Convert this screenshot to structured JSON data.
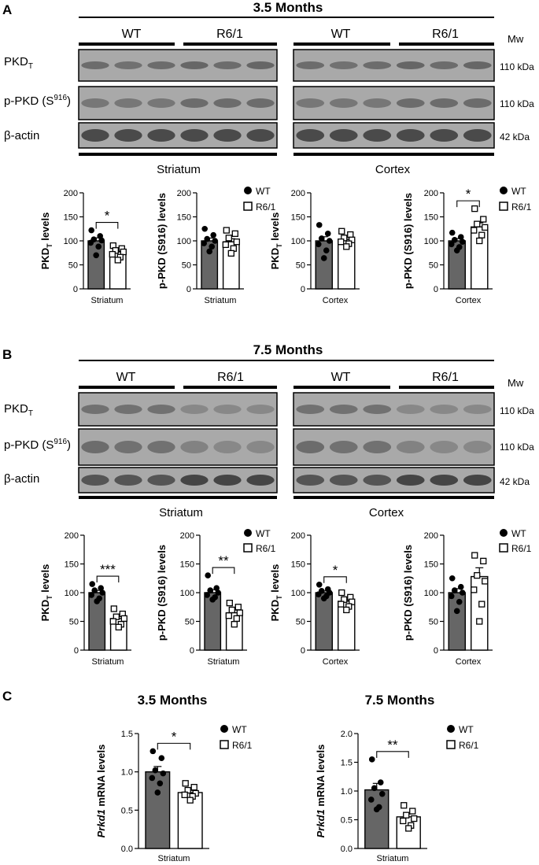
{
  "panels": {
    "A": {
      "letter": "A",
      "title": "3.5 Months",
      "groups": [
        "WT",
        "R6/1",
        "WT",
        "R6/1"
      ],
      "mw_header": "Mw",
      "blot_labels": [
        "PKD",
        "p-PKD (S",
        "β-actin"
      ],
      "pkd_sub": "T",
      "ppkd_sup": "916",
      "ppkd_close": ")",
      "mw_labels": [
        "110 kDa",
        "110 kDa",
        "42 kDa"
      ],
      "region_labels": [
        "Striatum",
        "Cortex"
      ]
    },
    "B": {
      "letter": "B",
      "title": "7.5 Months",
      "groups": [
        "WT",
        "R6/1",
        "WT",
        "R6/1"
      ],
      "mw_header": "Mw",
      "blot_labels": [
        "PKD",
        "p-PKD (S",
        "β-actin"
      ],
      "pkd_sub": "T",
      "ppkd_sup": "916",
      "ppkd_close": ")",
      "mw_labels": [
        "110 kDa",
        "110 kDa",
        "42 kDa"
      ],
      "region_labels": [
        "Striatum",
        "Cortex"
      ]
    },
    "C": {
      "letter": "C",
      "titles": [
        "3.5 Months",
        "7.5 Months"
      ]
    }
  },
  "legend": {
    "wt": "WT",
    "r6": "R6/1"
  },
  "colors": {
    "wt_bar": "#666666",
    "r6_bar": "#ffffff",
    "blot_bg": "#a9a9a9",
    "band": "#3a3a3a"
  },
  "chart_data": [
    {
      "id": "a1",
      "type": "bar",
      "ylabel": "PKD levels",
      "ylabel_sub": "T",
      "ylim": [
        0,
        200
      ],
      "yticks": [
        0,
        50,
        100,
        150,
        200
      ],
      "categories": [
        "Striatum"
      ],
      "series": [
        {
          "name": "WT",
          "values": [
            100
          ]
        },
        {
          "name": "R6/1",
          "values": [
            77
          ]
        }
      ],
      "points": [
        [
          122,
          110,
          103,
          101,
          96,
          88,
          70
        ],
        [
          90,
          84,
          80,
          77,
          72,
          66,
          60
        ]
      ],
      "sig": "*"
    },
    {
      "id": "a2",
      "type": "bar",
      "ylabel": "p-PKD (S916) levels",
      "ylim": [
        0,
        200
      ],
      "yticks": [
        0,
        50,
        100,
        150,
        200
      ],
      "categories": [
        "Striatum"
      ],
      "series": [
        {
          "name": "WT",
          "values": [
            100
          ]
        },
        {
          "name": "R6/1",
          "values": [
            98
          ]
        }
      ],
      "points": [
        [
          125,
          112,
          104,
          100,
          95,
          88,
          78
        ],
        [
          122,
          115,
          106,
          98,
          92,
          84,
          74
        ]
      ],
      "sig": ""
    },
    {
      "id": "a3",
      "type": "bar",
      "ylabel": "PKD levels",
      "ylabel_sub": "T",
      "ylim": [
        0,
        200
      ],
      "yticks": [
        0,
        50,
        100,
        150,
        200
      ],
      "categories": [
        "Cortex"
      ],
      "series": [
        {
          "name": "WT",
          "values": [
            100
          ]
        },
        {
          "name": "R6/1",
          "values": [
            103
          ]
        }
      ],
      "points": [
        [
          133,
          115,
          105,
          100,
          93,
          80,
          64
        ],
        [
          120,
          113,
          106,
          102,
          98,
          94,
          88
        ]
      ],
      "sig": ""
    },
    {
      "id": "a4",
      "type": "bar",
      "ylabel": "p-PKD (S916) levels",
      "ylim": [
        0,
        200
      ],
      "yticks": [
        0,
        50,
        100,
        150,
        200
      ],
      "categories": [
        "Cortex"
      ],
      "series": [
        {
          "name": "WT",
          "values": [
            100
          ]
        },
        {
          "name": "R6/1",
          "values": [
            129
          ]
        }
      ],
      "points": [
        [
          117,
          108,
          102,
          98,
          93,
          87,
          80
        ],
        [
          167,
          145,
          135,
          128,
          122,
          112,
          100
        ]
      ],
      "sig": "*"
    },
    {
      "id": "b1",
      "type": "bar",
      "ylabel": "PKD levels",
      "ylabel_sub": "T",
      "ylim": [
        0,
        200
      ],
      "yticks": [
        0,
        50,
        100,
        150,
        200
      ],
      "categories": [
        "Striatum"
      ],
      "series": [
        {
          "name": "WT",
          "values": [
            100
          ]
        },
        {
          "name": "R6/1",
          "values": [
            55
          ]
        }
      ],
      "points": [
        [
          115,
          108,
          104,
          100,
          96,
          90,
          85
        ],
        [
          72,
          63,
          58,
          55,
          50,
          45,
          40
        ]
      ],
      "sig": "***"
    },
    {
      "id": "b2",
      "type": "bar",
      "ylabel": "p-PKD (S916) levels",
      "ylim": [
        0,
        200
      ],
      "yticks": [
        0,
        50,
        100,
        150,
        200
      ],
      "categories": [
        "Striatum"
      ],
      "series": [
        {
          "name": "WT",
          "values": [
            100
          ]
        },
        {
          "name": "R6/1",
          "values": [
            65
          ]
        }
      ],
      "points": [
        [
          130,
          108,
          104,
          100,
          96,
          92,
          88
        ],
        [
          82,
          75,
          70,
          65,
          60,
          55,
          45
        ]
      ],
      "sig": "**"
    },
    {
      "id": "b3",
      "type": "bar",
      "ylabel": "PKD levels",
      "ylabel_sub": "T",
      "ylim": [
        0,
        200
      ],
      "yticks": [
        0,
        50,
        100,
        150,
        200
      ],
      "categories": [
        "Cortex"
      ],
      "series": [
        {
          "name": "WT",
          "values": [
            100
          ]
        },
        {
          "name": "R6/1",
          "values": [
            85
          ]
        }
      ],
      "points": [
        [
          114,
          106,
          103,
          100,
          97,
          94,
          90
        ],
        [
          100,
          92,
          88,
          84,
          80,
          76,
          70
        ]
      ],
      "sig": "*"
    },
    {
      "id": "b4",
      "type": "bar",
      "ylabel": "p-PKD (S916) levels",
      "ylim": [
        0,
        200
      ],
      "yticks": [
        0,
        50,
        100,
        150,
        200
      ],
      "categories": [
        "Cortex"
      ],
      "series": [
        {
          "name": "WT",
          "values": [
            100
          ]
        },
        {
          "name": "R6/1",
          "values": [
            128
          ]
        }
      ],
      "points": [
        [
          125,
          110,
          104,
          100,
          94,
          84,
          68
        ],
        [
          165,
          155,
          130,
          120,
          105,
          80,
          50
        ]
      ],
      "sig": ""
    },
    {
      "id": "c1",
      "type": "bar",
      "ylabel": "mRNA levels",
      "ylabel_italic": "Prkd1",
      "ylim": [
        0,
        1.5
      ],
      "yticks": [
        "0.0",
        "0.5",
        "1.0",
        "1.5"
      ],
      "categories": [
        "Striatum"
      ],
      "series": [
        {
          "name": "WT",
          "values": [
            1.0
          ]
        },
        {
          "name": "R6/1",
          "values": [
            0.73
          ]
        }
      ],
      "points": [
        [
          1.27,
          1.18,
          1.02,
          0.98,
          0.92,
          0.85,
          0.73
        ],
        [
          0.85,
          0.8,
          0.76,
          0.72,
          0.7,
          0.68,
          0.63
        ]
      ],
      "sig": "*"
    },
    {
      "id": "c2",
      "type": "bar",
      "ylabel": "mRNA levels",
      "ylabel_italic": "Prkd1",
      "ylim": [
        0,
        2.0
      ],
      "yticks": [
        "0.0",
        "0.5",
        "1.0",
        "1.5",
        "2.0"
      ],
      "categories": [
        "Striatum"
      ],
      "series": [
        {
          "name": "WT",
          "values": [
            1.02
          ]
        },
        {
          "name": "R6/1",
          "values": [
            0.55
          ]
        }
      ],
      "points": [
        [
          1.55,
          1.15,
          1.05,
          0.95,
          0.85,
          0.72,
          0.68
        ],
        [
          0.75,
          0.65,
          0.58,
          0.52,
          0.48,
          0.4,
          0.35
        ]
      ],
      "sig": "**"
    }
  ]
}
